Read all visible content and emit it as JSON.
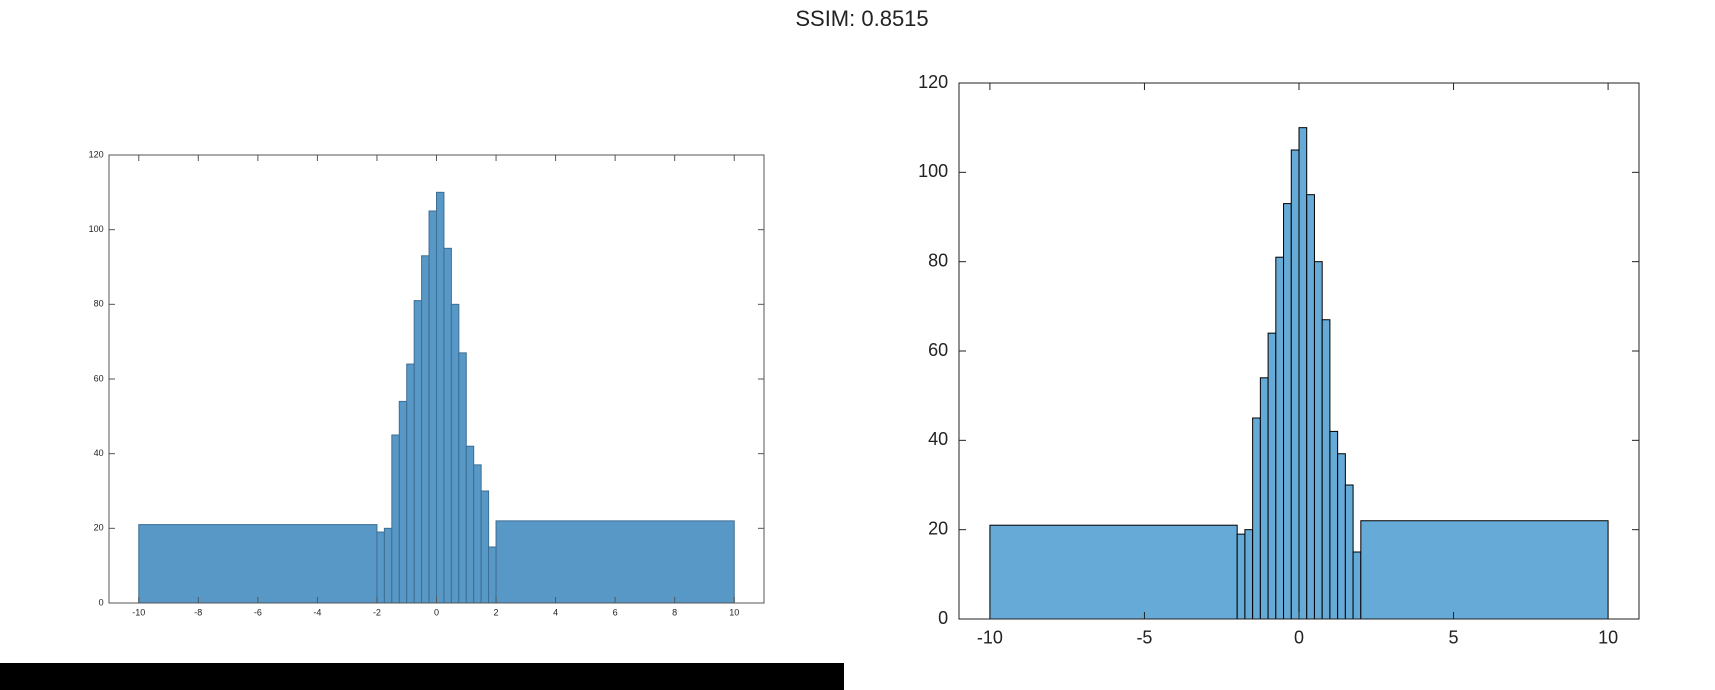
{
  "title": "SSIM: 0.8515",
  "chart_data": [
    {
      "type": "histogram",
      "bins": [
        -10,
        -2,
        -1.75,
        -1.5,
        -1.25,
        -1,
        -0.75,
        -0.5,
        -0.25,
        0,
        0.25,
        0.5,
        0.75,
        1,
        1.25,
        1.5,
        1.75,
        2,
        10
      ],
      "values": [
        21,
        19,
        20,
        45,
        54,
        64,
        81,
        93,
        105,
        110,
        95,
        80,
        67,
        42,
        37,
        30,
        15,
        22
      ],
      "color": "#5898c6",
      "edgecolor": "#3d6e93",
      "xlim": [
        -11,
        11
      ],
      "ylim": [
        0,
        120
      ],
      "xticks": [
        -10,
        -8,
        -6,
        -4,
        -2,
        0,
        2,
        4,
        6,
        8,
        10
      ],
      "yticks": [
        0,
        20,
        40,
        60,
        80,
        100,
        120
      ]
    },
    {
      "type": "histogram",
      "bins": [
        -10,
        -2,
        -1.75,
        -1.5,
        -1.25,
        -1,
        -0.75,
        -0.5,
        -0.25,
        0,
        0.25,
        0.5,
        0.75,
        1,
        1.25,
        1.5,
        1.75,
        2,
        10
      ],
      "values": [
        21,
        19,
        20,
        45,
        54,
        64,
        81,
        93,
        105,
        110,
        95,
        80,
        67,
        42,
        37,
        30,
        15,
        22
      ],
      "color": "#66aad7",
      "edgecolor": "#000000",
      "xlim": [
        -11,
        11
      ],
      "ylim": [
        0,
        120
      ],
      "xticks": [
        -10,
        -5,
        0,
        5,
        10
      ],
      "yticks": [
        0,
        20,
        40,
        60,
        80,
        100,
        120
      ]
    }
  ]
}
